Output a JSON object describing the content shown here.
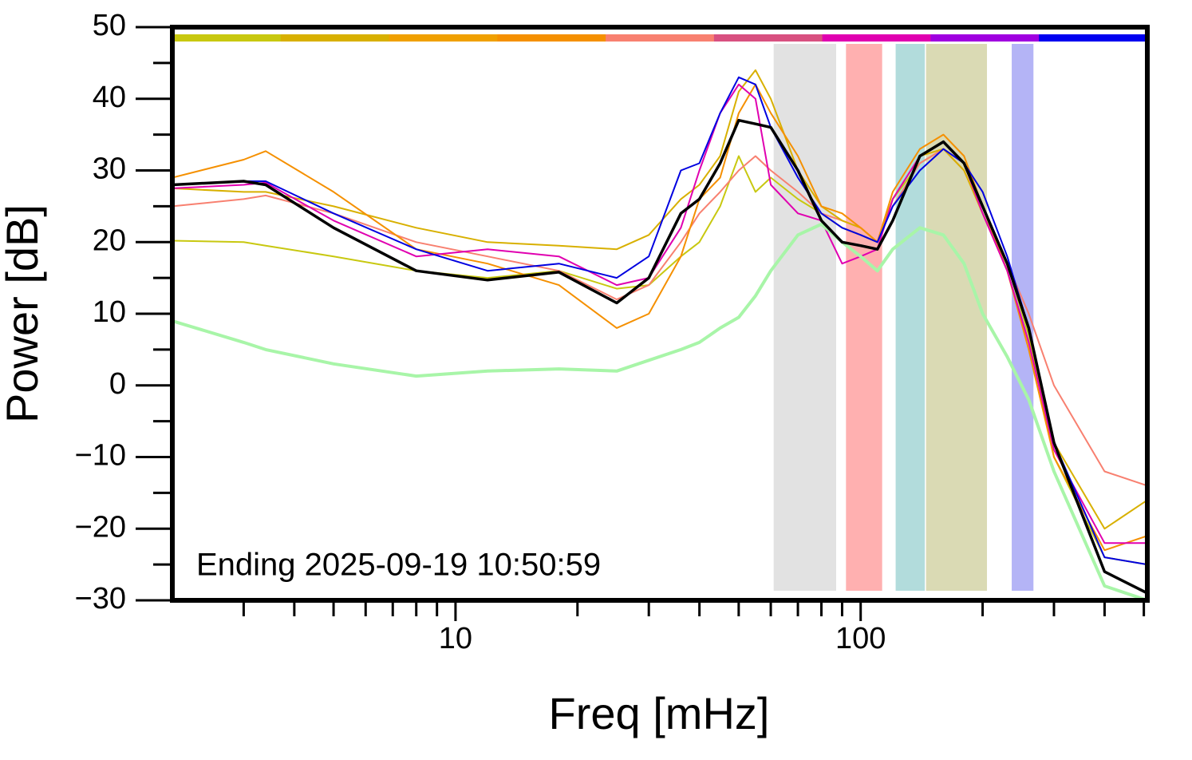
{
  "chart_data": {
    "type": "line",
    "x_label": "Freq [mHz]",
    "y_label": "Power [dB]",
    "annotation": "Ending 2025-09-19 10:50:59",
    "log_x": true,
    "xlim": [
      2,
      510
    ],
    "ylim": [
      -30,
      50
    ],
    "xticks": [
      10,
      100
    ],
    "xminorticks": [
      3,
      4,
      5,
      6,
      7,
      8,
      9,
      20,
      30,
      40,
      50,
      60,
      70,
      80,
      90,
      200,
      300,
      400,
      500
    ],
    "yticks": [
      {
        "value": -30,
        "label": "−30"
      },
      {
        "value": -20,
        "label": "−20"
      },
      {
        "value": -10,
        "label": "−10"
      },
      0,
      10,
      20,
      30,
      40,
      50
    ],
    "yminorticks": [
      -25,
      -15,
      -5,
      5,
      15,
      25,
      35,
      45
    ],
    "top_bar_colors": [
      "#c8c810",
      "#d8b000",
      "#f0a000",
      "#f59000",
      "#f88070",
      "#d85080",
      "#e000b0",
      "#a000e0",
      "#0000f0"
    ],
    "bands": [
      {
        "range": [
          61,
          87
        ],
        "color": "#e2e2e2"
      },
      {
        "range": [
          92,
          113
        ],
        "color": "#ffb0b0"
      },
      {
        "range": [
          122,
          144
        ],
        "color": "#b2dcdc"
      },
      {
        "range": [
          145,
          205
        ],
        "color": "#dadab4"
      },
      {
        "range": [
          236,
          267
        ],
        "color": "#b4b4f6"
      }
    ],
    "x": [
      2,
      3,
      3.4,
      5,
      8,
      12,
      18,
      25,
      30,
      36,
      40,
      45,
      50,
      55,
      60,
      70,
      80,
      90,
      100,
      110,
      120,
      140,
      160,
      180,
      200,
      230,
      260,
      300,
      400,
      510
    ],
    "series": [
      {
        "color": "#c8c810",
        "width": 2,
        "values": [
          20.2,
          20,
          19.5,
          18,
          16,
          15,
          16,
          13.5,
          14,
          18,
          20,
          25,
          32,
          27,
          29,
          26,
          24,
          22,
          21,
          20,
          26,
          31,
          33,
          31,
          25,
          17,
          7,
          -10,
          -24,
          -25
        ]
      },
      {
        "color": "#f88070",
        "width": 2,
        "values": [
          25,
          26,
          26.5,
          24,
          20,
          18,
          16,
          12,
          14,
          20,
          24,
          27,
          30,
          32,
          30,
          27,
          24,
          23,
          22,
          20,
          25,
          31,
          33,
          30,
          24,
          17,
          10,
          0,
          -12,
          -14
        ]
      },
      {
        "color": "#d8b000",
        "width": 2,
        "values": [
          27.5,
          27,
          27,
          25,
          22,
          20,
          19.5,
          19,
          21,
          26,
          28,
          32,
          41,
          44,
          40,
          30,
          25,
          23,
          22,
          20,
          26,
          32,
          33,
          30,
          24,
          16,
          6,
          -8,
          -20,
          -16
        ]
      },
      {
        "color": "#f59000",
        "width": 2,
        "values": [
          29,
          31.5,
          32.7,
          27,
          19,
          17,
          14,
          8,
          10,
          18,
          26,
          29,
          38,
          42,
          38,
          32,
          25,
          24,
          22,
          20,
          27,
          33,
          35,
          32,
          25,
          16,
          5,
          -10,
          -23,
          -21
        ]
      },
      {
        "color": "#e000b0",
        "width": 2,
        "values": [
          27.5,
          28,
          28.3,
          23,
          18,
          19,
          18,
          14,
          15,
          22,
          30,
          38,
          42,
          40,
          28,
          24,
          23,
          17,
          18,
          19,
          26,
          32,
          34,
          31,
          24,
          16,
          6,
          -9,
          -22,
          -22
        ]
      },
      {
        "color": "#0000e0",
        "width": 2,
        "values": [
          28,
          28.5,
          28.5,
          24,
          19,
          16,
          17,
          15,
          18,
          30,
          31,
          38,
          43,
          42,
          36,
          29,
          24,
          22,
          21,
          20,
          25,
          30,
          33,
          31,
          27,
          18,
          8,
          -8,
          -24,
          -25
        ]
      },
      {
        "color": "#a8f5a8",
        "width": 4,
        "values": [
          9,
          6,
          5,
          3,
          1.3,
          2,
          2.3,
          2,
          3.5,
          5,
          6,
          8,
          9.5,
          12.5,
          16,
          21,
          22.5,
          20,
          18,
          16,
          19,
          22,
          21,
          17,
          10,
          4,
          -2,
          -12,
          -28,
          -30
        ]
      },
      {
        "color": "#000000",
        "width": 3.5,
        "values": [
          28,
          28.5,
          28,
          22,
          16,
          14.7,
          15.8,
          11.5,
          15,
          24,
          26,
          31,
          37,
          36.5,
          36,
          30,
          23,
          20,
          19.5,
          19,
          23,
          32,
          34,
          31,
          25,
          17,
          8,
          -8,
          -26,
          -29
        ]
      }
    ]
  }
}
